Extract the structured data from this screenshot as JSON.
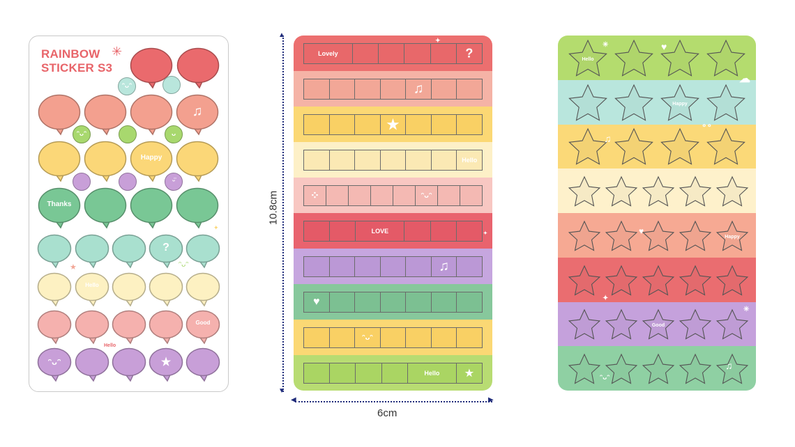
{
  "sheet1": {
    "title_line1": "RAINBOW",
    "title_line2": "STICKER S3",
    "labels": {
      "happy": "Happy",
      "thanks": "Thanks",
      "hello": "Hello",
      "good": "Good",
      "question": "?",
      "smile": "ᵔᴗᵔ",
      "cute": "cute",
      "face": "ᴗ"
    },
    "colors": {
      "red": "#ea6a6d",
      "salmon": "#f3a08f",
      "yellow": "#fbd778",
      "green": "#79c795",
      "mint": "#a9e0cf",
      "cream": "#fdf1c2",
      "pink": "#f5b1ae",
      "purple": "#c89fd8",
      "lime": "#a8d86e",
      "sky": "#b9e6dc"
    }
  },
  "sheet2": {
    "labels": {
      "lovely": "Lovely",
      "love": "LOVE",
      "hello": "Hello",
      "question": "?"
    },
    "bands": [
      {
        "bg": "#ec6f6f",
        "cell": "#e8686a"
      },
      {
        "bg": "#f5b3a6",
        "cell": "#f2a797"
      },
      {
        "bg": "#fbd874",
        "cell": "#f9d064"
      },
      {
        "bg": "#fdf0c7",
        "cell": "#fbe9b4"
      },
      {
        "bg": "#f8c7c2",
        "cell": "#f4b9b3"
      },
      {
        "bg": "#e9636e",
        "cell": "#e45a67"
      },
      {
        "bg": "#c6a6df",
        "cell": "#bb98d6"
      },
      {
        "bg": "#87c89c",
        "cell": "#7cc092"
      },
      {
        "bg": "#fbd874",
        "cell": "#f9d064"
      },
      {
        "bg": "#b8dc72",
        "cell": "#aad563"
      }
    ]
  },
  "sheet3": {
    "labels": {
      "hello": "Hello",
      "happy": "Happy",
      "good": "Good"
    },
    "bands": [
      "#b4dc6e",
      "#b9e6dd",
      "#fbd978",
      "#fef1cb",
      "#f6a993",
      "#ea6d70",
      "#c5a1dc",
      "#8fd0a3"
    ]
  },
  "dimensions": {
    "height": "10.8cm",
    "width": "6cm"
  }
}
